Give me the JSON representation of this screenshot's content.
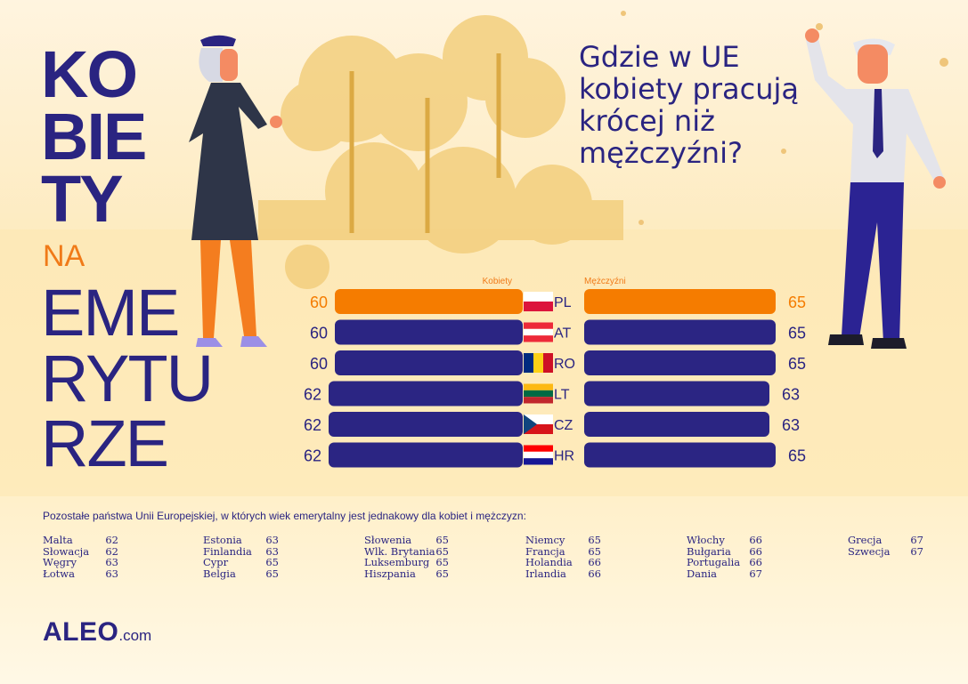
{
  "title": {
    "lines_bold": [
      "KO",
      "BIE",
      "TY"
    ],
    "na": "NA",
    "lines_regular": [
      "EME",
      "RYTU",
      "RZE"
    ]
  },
  "question": "Gdzie w UE kobiety pracują krócej niż mężczyźni?",
  "chart_data": {
    "type": "bar",
    "orientation": "horizontal-butterfly",
    "series_labels": {
      "women": "Kobiety",
      "men": "Mężczyźni"
    },
    "categories": [
      "PL",
      "AT",
      "RO",
      "LT",
      "CZ",
      "HR"
    ],
    "women": [
      60,
      60,
      60,
      62,
      62,
      62
    ],
    "men": [
      65,
      65,
      65,
      63,
      63,
      65
    ],
    "highlight": "PL",
    "colors": {
      "highlight": "#f57c00",
      "bar": "#2b2583"
    }
  },
  "other_countries": {
    "title": "Pozostałe państwa Unii Europejskiej, w których wiek emerytalny jest jednakowy  dla kobiet i mężczyzn:",
    "columns": [
      [
        [
          "Malta",
          "62"
        ],
        [
          "Słowacja",
          "62"
        ],
        [
          "Węgry",
          "63"
        ],
        [
          "Łotwa",
          "63"
        ]
      ],
      [
        [
          "Estonia",
          "63"
        ],
        [
          "Finlandia",
          "63"
        ],
        [
          "Cypr",
          "65"
        ],
        [
          "Belgia",
          "65"
        ]
      ],
      [
        [
          "Słowenia",
          "65"
        ],
        [
          "Wlk. Brytania",
          "65"
        ],
        [
          "Luksemburg",
          "65"
        ],
        [
          "Hiszpania",
          "65"
        ]
      ],
      [
        [
          "Niemcy",
          "65"
        ],
        [
          "Francja",
          "65"
        ],
        [
          "Holandia",
          "66"
        ],
        [
          "Irlandia",
          "66"
        ]
      ],
      [
        [
          "Włochy",
          "66"
        ],
        [
          "Bułgaria",
          "66"
        ],
        [
          "Portugalia",
          "66"
        ],
        [
          "Dania",
          "67"
        ]
      ],
      [
        [
          "Grecja",
          "67"
        ],
        [
          "Szwecja",
          "67"
        ]
      ]
    ]
  },
  "logo": {
    "main": "ALEO",
    "suffix": ".com"
  }
}
